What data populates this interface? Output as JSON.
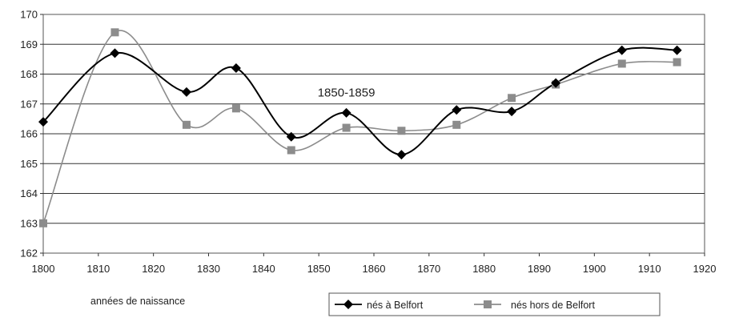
{
  "chart_data": {
    "type": "line",
    "xlabel": "années de naissance",
    "ylabel": "",
    "xlim": [
      1800,
      1920
    ],
    "ylim": [
      162,
      170
    ],
    "xticks": [
      1800,
      1810,
      1820,
      1830,
      1840,
      1850,
      1860,
      1870,
      1880,
      1890,
      1900,
      1910,
      1920
    ],
    "yticks": [
      162,
      163,
      164,
      165,
      166,
      167,
      168,
      169,
      170
    ],
    "grid": "horizontal",
    "legend_position": "bottom-right",
    "annotations": [
      {
        "text": "1850-1859",
        "x": 1855,
        "y": 167.2
      }
    ],
    "series": [
      {
        "name": "nés à Belfort",
        "color": "#000000",
        "marker": "diamond",
        "x": [
          1800,
          1813,
          1826,
          1835,
          1845,
          1855,
          1865,
          1875,
          1885,
          1893,
          1905,
          1915
        ],
        "values": [
          166.4,
          168.7,
          167.4,
          168.2,
          165.9,
          166.7,
          165.3,
          166.8,
          166.75,
          167.7,
          168.8,
          168.8
        ]
      },
      {
        "name": "nés hors de Belfort",
        "color": "#8c8c8c",
        "marker": "square",
        "x": [
          1800,
          1813,
          1826,
          1835,
          1845,
          1855,
          1865,
          1875,
          1885,
          1893,
          1905,
          1915
        ],
        "values": [
          163.0,
          169.4,
          166.3,
          166.85,
          165.45,
          166.2,
          166.1,
          166.3,
          167.2,
          167.65,
          168.35,
          168.4
        ]
      }
    ]
  }
}
